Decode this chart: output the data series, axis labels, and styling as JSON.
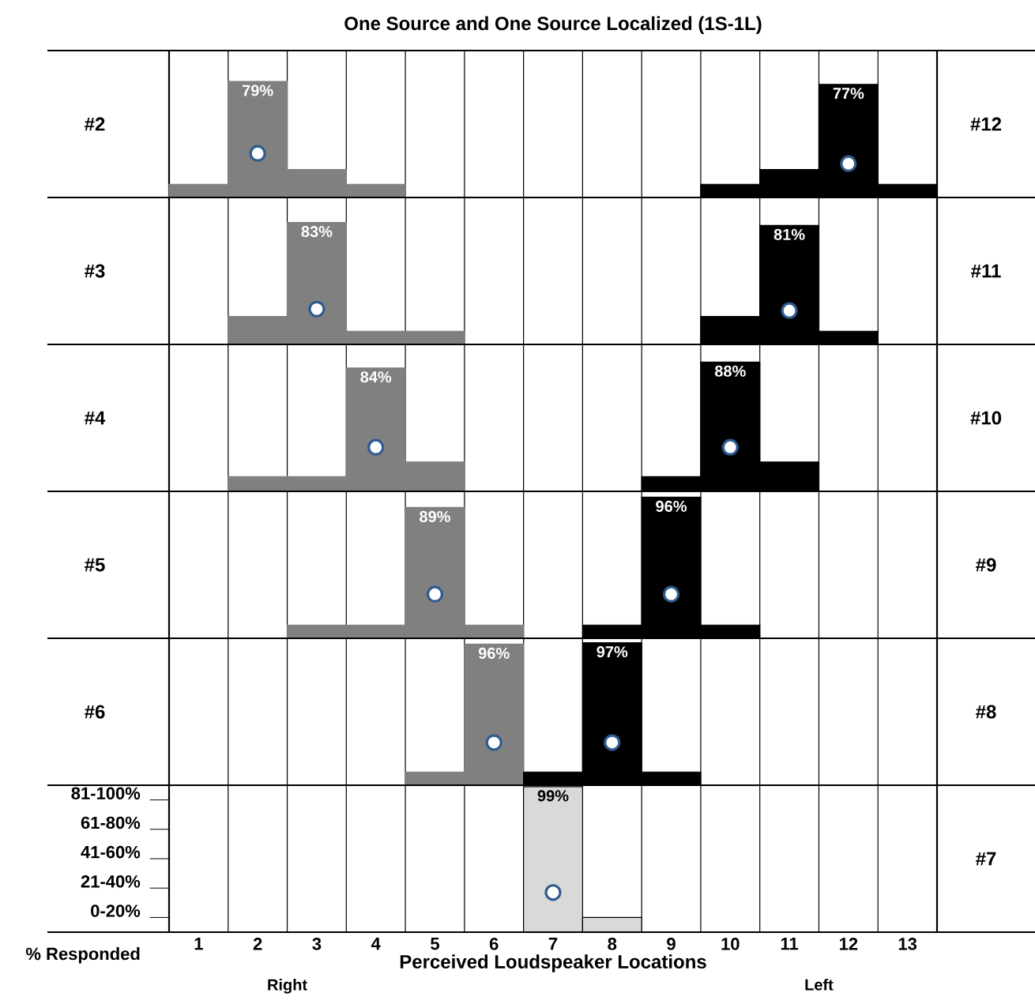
{
  "chart_data": [
    {
      "type": "bar",
      "title": "One Source and One Source Localized (1S-1L)",
      "categories": [
        "1",
        "2",
        "3",
        "4",
        "5",
        "6",
        "7",
        "8",
        "9",
        "10",
        "11",
        "12",
        "13"
      ],
      "ylim": [
        0,
        100
      ],
      "tick_labels": false,
      "grid": "x",
      "ylabel": "#2",
      "y2label": "#12",
      "series": [
        {
          "color": "#808080",
          "values": [
            9,
            79,
            19,
            9,
            null,
            null,
            null,
            null,
            null,
            null,
            null,
            null,
            null
          ],
          "value_labels": [
            null,
            "79%",
            null,
            null,
            null,
            null,
            null,
            null,
            null,
            null,
            null,
            null,
            null
          ]
        },
        {
          "color": "#000000",
          "values": [
            null,
            null,
            null,
            null,
            null,
            null,
            null,
            null,
            null,
            9,
            19,
            77,
            9
          ],
          "value_labels": [
            null,
            null,
            null,
            null,
            null,
            null,
            null,
            null,
            null,
            null,
            null,
            "77%",
            null
          ]
        },
        {
          "type": "scatter",
          "marker": "circle",
          "color": "#2f5b8f",
          "values": [
            null,
            30,
            null,
            null,
            null,
            null,
            null,
            null,
            null,
            null,
            null,
            23,
            null
          ]
        }
      ]
    },
    {
      "type": "bar",
      "categories": [
        "1",
        "2",
        "3",
        "4",
        "5",
        "6",
        "7",
        "8",
        "9",
        "10",
        "11",
        "12",
        "13"
      ],
      "ylim": [
        0,
        100
      ],
      "tick_labels": false,
      "grid": "x",
      "ylabel": "#3",
      "y2label": "#11",
      "series": [
        {
          "color": "#808080",
          "values": [
            null,
            19,
            83,
            9,
            9,
            null,
            null,
            null,
            null,
            null,
            null,
            null,
            null
          ],
          "value_labels": [
            null,
            null,
            "83%",
            null,
            null,
            null,
            null,
            null,
            null,
            null,
            null,
            null,
            null
          ]
        },
        {
          "color": "#000000",
          "values": [
            null,
            null,
            null,
            null,
            null,
            null,
            null,
            null,
            null,
            19,
            81,
            9,
            null
          ],
          "value_labels": [
            null,
            null,
            null,
            null,
            null,
            null,
            null,
            null,
            null,
            null,
            "81%",
            null,
            null
          ]
        },
        {
          "type": "scatter",
          "marker": "circle",
          "color": "#2f5b8f",
          "values": [
            null,
            null,
            24,
            null,
            null,
            null,
            null,
            null,
            null,
            null,
            23,
            null,
            null
          ]
        }
      ]
    },
    {
      "type": "bar",
      "categories": [
        "1",
        "2",
        "3",
        "4",
        "5",
        "6",
        "7",
        "8",
        "9",
        "10",
        "11",
        "12",
        "13"
      ],
      "ylim": [
        0,
        100
      ],
      "tick_labels": false,
      "grid": "x",
      "ylabel": "#4",
      "y2label": "#10",
      "series": [
        {
          "color": "#808080",
          "values": [
            null,
            10,
            10,
            84,
            20,
            null,
            null,
            null,
            null,
            null,
            null,
            null,
            null
          ],
          "value_labels": [
            null,
            null,
            null,
            "84%",
            null,
            null,
            null,
            null,
            null,
            null,
            null,
            null,
            null
          ]
        },
        {
          "color": "#000000",
          "values": [
            null,
            null,
            null,
            null,
            null,
            null,
            null,
            null,
            10,
            88,
            20,
            null,
            null
          ],
          "value_labels": [
            null,
            null,
            null,
            null,
            null,
            null,
            null,
            null,
            null,
            "88%",
            null,
            null,
            null
          ]
        },
        {
          "type": "scatter",
          "marker": "circle",
          "color": "#2f5b8f",
          "values": [
            null,
            null,
            null,
            30,
            null,
            null,
            null,
            null,
            null,
            30,
            null,
            null,
            null
          ]
        }
      ]
    },
    {
      "type": "bar",
      "categories": [
        "1",
        "2",
        "3",
        "4",
        "5",
        "6",
        "7",
        "8",
        "9",
        "10",
        "11",
        "12",
        "13"
      ],
      "ylim": [
        0,
        100
      ],
      "tick_labels": false,
      "grid": "x",
      "ylabel": "#5",
      "y2label": "#9",
      "series": [
        {
          "color": "#808080",
          "values": [
            null,
            null,
            9,
            9,
            89,
            9,
            null,
            null,
            null,
            null,
            null,
            null,
            null
          ],
          "value_labels": [
            null,
            null,
            null,
            null,
            "89%",
            null,
            null,
            null,
            null,
            null,
            null,
            null,
            null
          ]
        },
        {
          "color": "#000000",
          "values": [
            null,
            null,
            null,
            null,
            null,
            null,
            null,
            9,
            96,
            9,
            null,
            null,
            null
          ],
          "value_labels": [
            null,
            null,
            null,
            null,
            null,
            null,
            null,
            null,
            "96%",
            null,
            null,
            null,
            null
          ]
        },
        {
          "type": "scatter",
          "marker": "circle",
          "color": "#2f5b8f",
          "values": [
            null,
            null,
            null,
            null,
            30,
            null,
            null,
            null,
            30,
            null,
            null,
            null,
            null
          ]
        }
      ]
    },
    {
      "type": "bar",
      "categories": [
        "1",
        "2",
        "3",
        "4",
        "5",
        "6",
        "7",
        "8",
        "9",
        "10",
        "11",
        "12",
        "13"
      ],
      "ylim": [
        0,
        100
      ],
      "tick_labels": false,
      "grid": "x",
      "ylabel": "#6",
      "y2label": "#8",
      "series": [
        {
          "color": "#808080",
          "values": [
            null,
            null,
            null,
            null,
            9,
            96,
            null,
            null,
            null,
            null,
            null,
            null,
            null
          ],
          "value_labels": [
            null,
            null,
            null,
            null,
            null,
            "96%",
            null,
            null,
            null,
            null,
            null,
            null,
            null
          ]
        },
        {
          "color": "#000000",
          "values": [
            null,
            null,
            null,
            null,
            null,
            null,
            9,
            97,
            9,
            null,
            null,
            null,
            null
          ],
          "value_labels": [
            null,
            null,
            null,
            null,
            null,
            null,
            null,
            "97%",
            null,
            null,
            null,
            null,
            null
          ]
        },
        {
          "type": "scatter",
          "marker": "circle",
          "color": "#2f5b8f",
          "values": [
            null,
            null,
            null,
            null,
            null,
            29,
            null,
            29,
            null,
            null,
            null,
            null,
            null
          ]
        }
      ]
    },
    {
      "type": "bar",
      "categories": [
        "1",
        "2",
        "3",
        "4",
        "5",
        "6",
        "7",
        "8",
        "9",
        "10",
        "11",
        "12",
        "13"
      ],
      "ylim": [
        0,
        100
      ],
      "tick_labels": "x",
      "grid": "x",
      "xlabel": "Perceived Loudspeaker Locations",
      "y2label": "#7",
      "annotations": [
        "% Responded",
        "Right",
        "Left",
        "0-20%",
        "21-40%",
        "41-60%",
        "61-80%",
        "81-100%"
      ],
      "series": [
        {
          "color": "#d9d9d9",
          "values": [
            null,
            null,
            null,
            null,
            null,
            null,
            99,
            10,
            null,
            null,
            null,
            null,
            null
          ],
          "value_labels": [
            null,
            null,
            null,
            null,
            null,
            null,
            "99%",
            null,
            null,
            null,
            null,
            null,
            null
          ]
        },
        {
          "type": "scatter",
          "marker": "circle",
          "color": "#2f5b8f",
          "values": [
            null,
            null,
            null,
            null,
            null,
            null,
            27,
            null,
            null,
            null,
            null,
            null,
            null
          ]
        }
      ]
    }
  ]
}
